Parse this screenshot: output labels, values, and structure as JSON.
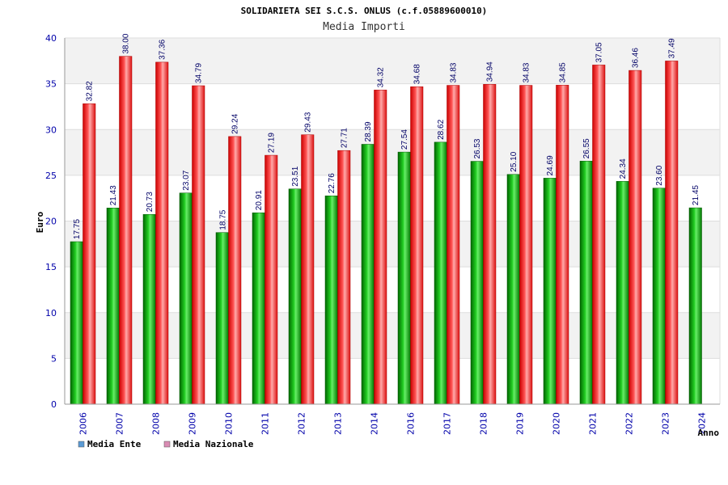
{
  "chart_data": {
    "type": "bar",
    "title": "SOLIDARIETA SEI S.C.S. ONLUS (c.f.05889600010)",
    "subtitle": "Media Importi",
    "ylabel": "Euro",
    "xlabel": "Anno",
    "ylim": [
      0,
      40
    ],
    "yticks": [
      0,
      5,
      10,
      15,
      20,
      25,
      30,
      35,
      40
    ],
    "grid": true,
    "legend_position": "bottom-left",
    "categories": [
      "2006",
      "2007",
      "2008",
      "2009",
      "2010",
      "2011",
      "2012",
      "2013",
      "2014",
      "2016",
      "2017",
      "2018",
      "2019",
      "2020",
      "2021",
      "2022",
      "2023",
      "2024"
    ],
    "series": [
      {
        "name": "Media Ente",
        "color": "#00aa00",
        "legend_color": "#5b9bd5",
        "values": [
          17.75,
          21.43,
          20.73,
          23.07,
          18.75,
          20.91,
          23.51,
          22.76,
          28.39,
          27.54,
          28.62,
          26.53,
          25.1,
          24.69,
          26.55,
          24.34,
          23.6,
          21.45
        ],
        "labels": [
          "17.75",
          "21.43",
          "20.73",
          "23.07",
          "18.75",
          "20.91",
          "23.51",
          "22.76",
          "28.39",
          "27.54",
          "28.62",
          "26.53",
          "25.10",
          "24.69",
          "26.55",
          "24.34",
          "23.60",
          "21.45"
        ]
      },
      {
        "name": "Media Nazionale",
        "color": "#ee1111",
        "legend_color": "#d98cb3",
        "values": [
          32.82,
          38.0,
          37.36,
          34.79,
          29.24,
          27.19,
          29.43,
          27.71,
          34.32,
          34.68,
          34.83,
          34.94,
          34.83,
          34.85,
          37.05,
          36.46,
          37.49,
          null
        ],
        "labels": [
          "32.82",
          "38.00",
          "37.36",
          "34.79",
          "29.24",
          "27.19",
          "29.43",
          "27.71",
          "34.32",
          "34.68",
          "34.83",
          "34.94",
          "34.83",
          "34.85",
          "37.05",
          "36.46",
          "37.49",
          ""
        ]
      }
    ]
  }
}
